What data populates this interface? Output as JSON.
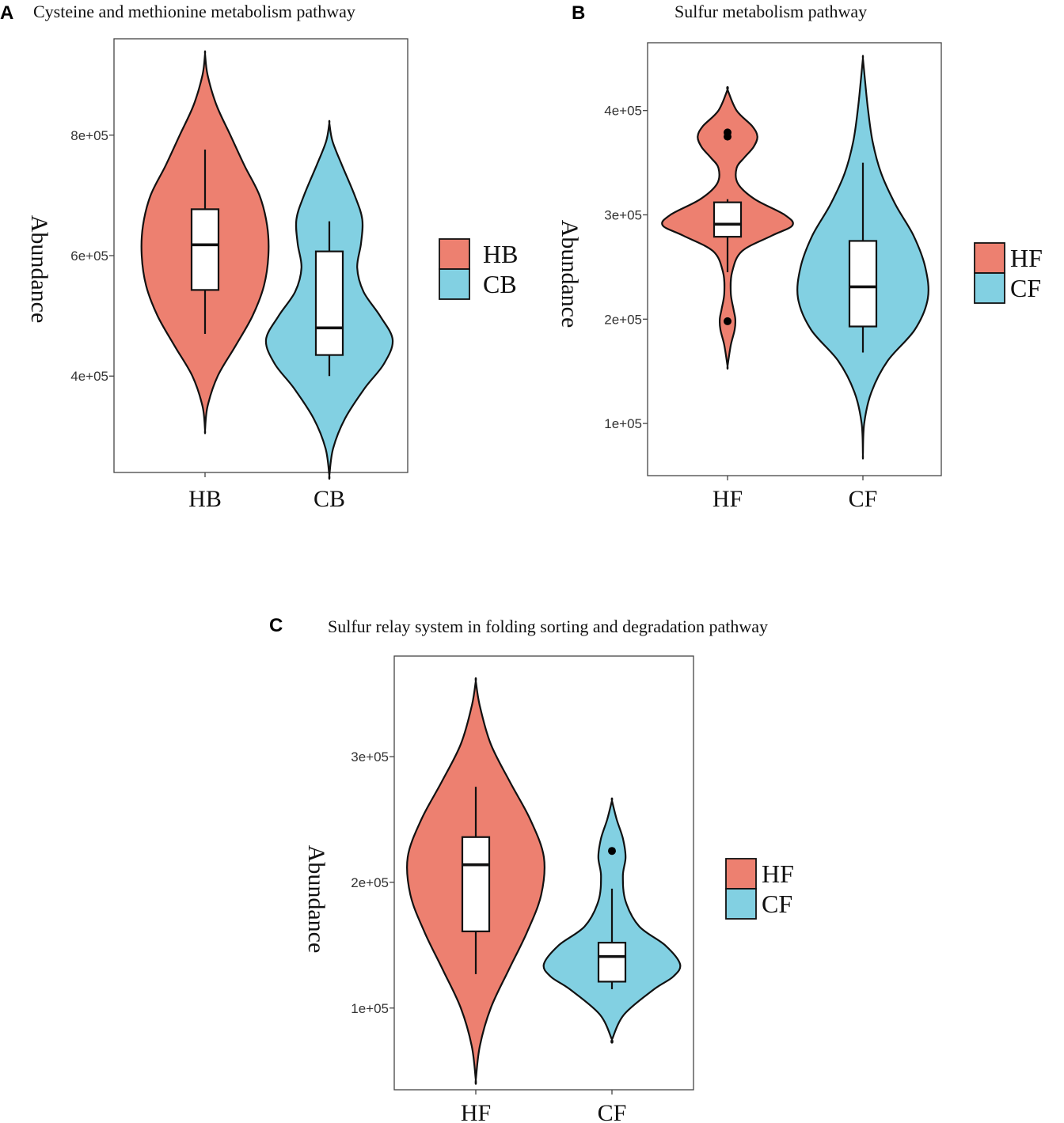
{
  "colors": {
    "first": "#ED8070",
    "second": "#82D0E2",
    "outline": "#111111",
    "box": "#ffffff"
  },
  "chart_data": [
    {
      "type": "violin",
      "panel": "A",
      "title": "Cysteine and  methionine metabolism pathway",
      "ylabel": "Abundance",
      "xlabel": "",
      "categories": [
        "HB",
        "CB"
      ],
      "ylim": [
        240000,
        960000
      ],
      "yticks": [
        400000,
        600000,
        800000
      ],
      "ytick_labels": [
        "4e+05",
        "6e+05",
        "8e+05"
      ],
      "legend": {
        "entries": [
          "HB",
          "CB"
        ],
        "position": "right"
      },
      "grid": false,
      "series": [
        {
          "name": "HB",
          "box": {
            "lower_whisker": 470000,
            "q1": 543000,
            "median": 618000,
            "q3": 677000,
            "upper_whisker": 776000
          },
          "outliers": [],
          "violin": {
            "y": [
              310000,
              350000,
              400000,
              450000,
              500000,
              550000,
              600000,
              650000,
              700000,
              750000,
              800000,
              850000,
              900000,
              935000
            ],
            "width": [
              0.0,
              0.04,
              0.2,
              0.48,
              0.75,
              0.93,
              1.0,
              0.98,
              0.86,
              0.62,
              0.4,
              0.18,
              0.04,
              0.0
            ]
          }
        },
        {
          "name": "CB",
          "box": {
            "lower_whisker": 400000,
            "q1": 435000,
            "median": 480000,
            "q3": 607000,
            "upper_whisker": 657000
          },
          "outliers": [],
          "violin": {
            "y": [
              235000,
              280000,
              330000,
              380000,
              420000,
              460000,
              500000,
              540000,
              580000,
              620000,
              660000,
              700000,
              750000,
              790000,
              820000
            ],
            "width": [
              0.0,
              0.06,
              0.25,
              0.56,
              0.86,
              1.0,
              0.8,
              0.54,
              0.44,
              0.5,
              0.52,
              0.4,
              0.2,
              0.05,
              0.0
            ]
          }
        }
      ]
    },
    {
      "type": "violin",
      "panel": "B",
      "title": "Sulfur metabolism pathway",
      "ylabel": "Abundance",
      "xlabel": "",
      "categories": [
        "HF",
        "CF"
      ],
      "ylim": [
        50000,
        465000
      ],
      "yticks": [
        100000,
        200000,
        300000,
        400000
      ],
      "ytick_labels": [
        "1e+05",
        "2e+05",
        "3e+05",
        "4e+05"
      ],
      "legend": {
        "entries": [
          "HF",
          "CF"
        ],
        "position": "right"
      },
      "grid": false,
      "series": [
        {
          "name": "HF",
          "box": {
            "lower_whisker": 245000,
            "q1": 279000,
            "median": 291000,
            "q3": 312000,
            "upper_whisker": 315000
          },
          "outliers": [
            198000,
            375000,
            379000
          ],
          "violin": {
            "y": [
              155000,
              175000,
              190000,
              200000,
              210000,
              225000,
              245000,
              265000,
              280000,
              290000,
              300000,
              315000,
              330000,
              345000,
              355000,
              365000,
              375000,
              385000,
              400000,
              420000
            ],
            "width": [
              0.0,
              0.05,
              0.11,
              0.12,
              0.09,
              0.05,
              0.07,
              0.22,
              0.68,
              1.0,
              0.88,
              0.42,
              0.16,
              0.14,
              0.26,
              0.4,
              0.46,
              0.38,
              0.14,
              0.0
            ]
          }
        },
        {
          "name": "CF",
          "box": {
            "lower_whisker": 168000,
            "q1": 193000,
            "median": 231000,
            "q3": 275000,
            "upper_whisker": 350000
          },
          "outliers": [],
          "violin": {
            "y": [
              70000,
              100000,
              130000,
              160000,
              190000,
              220000,
              250000,
              280000,
              310000,
              340000,
              370000,
              400000,
              430000,
              450000
            ],
            "width": [
              0.0,
              0.02,
              0.13,
              0.38,
              0.8,
              1.0,
              0.96,
              0.78,
              0.5,
              0.28,
              0.15,
              0.08,
              0.03,
              0.0
            ]
          }
        }
      ]
    },
    {
      "type": "violin",
      "panel": "C",
      "title": "Sulfur relay system in folding sorting and degradation pathway",
      "ylabel": "Abundance",
      "xlabel": "",
      "categories": [
        "HF",
        "CF"
      ],
      "ylim": [
        35000,
        380000
      ],
      "yticks": [
        100000,
        200000,
        300000
      ],
      "ytick_labels": [
        "1e+05",
        "2e+05",
        "3e+05"
      ],
      "legend": {
        "entries": [
          "HF",
          "CF"
        ],
        "position": "right"
      },
      "grid": false,
      "series": [
        {
          "name": "HF",
          "box": {
            "lower_whisker": 127000,
            "q1": 161000,
            "median": 214000,
            "q3": 236000,
            "upper_whisker": 276000
          },
          "outliers": [],
          "violin": {
            "y": [
              43000,
              70000,
              100000,
              130000,
              160000,
              190000,
              220000,
              250000,
              280000,
              310000,
              340000,
              360000
            ],
            "width": [
              0.0,
              0.06,
              0.22,
              0.48,
              0.75,
              0.96,
              1.0,
              0.8,
              0.5,
              0.22,
              0.06,
              0.0
            ]
          }
        },
        {
          "name": "CF",
          "box": {
            "lower_whisker": 115000,
            "q1": 121000,
            "median": 141000,
            "q3": 152000,
            "upper_whisker": 195000
          },
          "outliers": [
            225000
          ],
          "violin": {
            "y": [
              75000,
              95000,
              115000,
              125000,
              135000,
              150000,
              165000,
              185000,
              205000,
              220000,
              235000,
              250000,
              265000
            ],
            "width": [
              0.0,
              0.18,
              0.62,
              0.9,
              1.0,
              0.78,
              0.4,
              0.2,
              0.16,
              0.2,
              0.16,
              0.07,
              0.0
            ]
          }
        }
      ]
    }
  ]
}
